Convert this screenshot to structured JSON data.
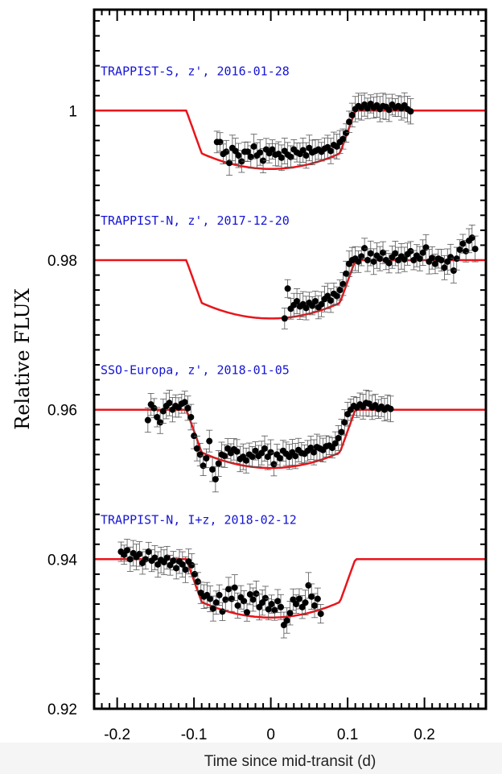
{
  "chart_data": {
    "type": "scatter",
    "xlabel": "Time since mid-transit (d)",
    "ylabel": "Relative  FLUX",
    "xlim": [
      -0.23,
      0.28
    ],
    "ylim": [
      0.92,
      1.0135
    ],
    "xticks": [
      -0.2,
      -0.1,
      0,
      0.1,
      0.2
    ],
    "xtick_labels": [
      "-0.2",
      "-0.1",
      "0",
      "0.1",
      "0.2"
    ],
    "yticks": [
      0.92,
      0.94,
      0.96,
      0.98,
      1.0
    ],
    "ytick_labels": [
      "0.92",
      "0.94",
      "0.96",
      "0.98",
      "1"
    ],
    "grid": false,
    "model_color": "#e8151b",
    "point_color": "#000000",
    "label_color": "#1515d6",
    "model": {
      "depth": 0.0065,
      "t1": -0.11,
      "t2": -0.09,
      "t3": 0.09,
      "t4": 0.11
    },
    "series": [
      {
        "label": "TRAPPIST-S, z', 2016-01-28",
        "baseline": 1.0,
        "points": [
          [
            -0.07,
            0.9958
          ],
          [
            -0.066,
            0.9958
          ],
          [
            -0.062,
            0.9942
          ],
          [
            -0.058,
            0.9945
          ],
          [
            -0.054,
            0.993
          ],
          [
            -0.05,
            0.995
          ],
          [
            -0.046,
            0.9946
          ],
          [
            -0.042,
            0.994
          ],
          [
            -0.038,
            0.9932
          ],
          [
            -0.034,
            0.9945
          ],
          [
            -0.03,
            0.9945
          ],
          [
            -0.026,
            0.9938
          ],
          [
            -0.022,
            0.9952
          ],
          [
            -0.018,
            0.994
          ],
          [
            -0.014,
            0.9944
          ],
          [
            -0.01,
            0.9933
          ],
          [
            -0.006,
            0.9948
          ],
          [
            -0.002,
            0.9943
          ],
          [
            0.002,
            0.9948
          ],
          [
            0.006,
            0.9941
          ],
          [
            0.01,
            0.9942
          ],
          [
            0.014,
            0.9937
          ],
          [
            0.018,
            0.9946
          ],
          [
            0.022,
            0.9941
          ],
          [
            0.026,
            0.9938
          ],
          [
            0.03,
            0.9948
          ],
          [
            0.034,
            0.9944
          ],
          [
            0.038,
            0.9942
          ],
          [
            0.042,
            0.9947
          ],
          [
            0.046,
            0.994
          ],
          [
            0.05,
            0.995
          ],
          [
            0.054,
            0.9944
          ],
          [
            0.058,
            0.9946
          ],
          [
            0.062,
            0.9948
          ],
          [
            0.066,
            0.9945
          ],
          [
            0.07,
            0.9949
          ],
          [
            0.074,
            0.9951
          ],
          [
            0.078,
            0.9946
          ],
          [
            0.082,
            0.9954
          ],
          [
            0.086,
            0.9952
          ],
          [
            0.09,
            0.9958
          ],
          [
            0.094,
            0.9962
          ],
          [
            0.098,
            0.997
          ],
          [
            0.102,
            0.9985
          ],
          [
            0.106,
            0.9994
          ],
          [
            0.11,
            1.0002
          ],
          [
            0.114,
            1.0006
          ],
          [
            0.118,
            1.0004
          ],
          [
            0.122,
            1.0008
          ],
          [
            0.126,
            1.0003
          ],
          [
            0.13,
            1.0009
          ],
          [
            0.134,
            1.0004
          ],
          [
            0.138,
            1.0007
          ],
          [
            0.142,
            1.0002
          ],
          [
            0.146,
            1.0006
          ],
          [
            0.15,
            1.0005
          ],
          [
            0.154,
            1.0001
          ],
          [
            0.158,
            1.0008
          ],
          [
            0.162,
            1.0004
          ],
          [
            0.166,
            1.0006
          ],
          [
            0.17,
            1.0003
          ],
          [
            0.174,
            1.0007
          ],
          [
            0.178,
            1.0002
          ],
          [
            0.182,
            0.9999
          ]
        ]
      },
      {
        "label": "TRAPPIST-N, z', 2017-12-20",
        "baseline": 0.98,
        "points": [
          [
            0.018,
            0.9722
          ],
          [
            0.022,
            0.9762
          ],
          [
            0.026,
            0.9735
          ],
          [
            0.03,
            0.974
          ],
          [
            0.034,
            0.9745
          ],
          [
            0.038,
            0.9738
          ],
          [
            0.042,
            0.9741
          ],
          [
            0.046,
            0.9736
          ],
          [
            0.05,
            0.9743
          ],
          [
            0.054,
            0.9739
          ],
          [
            0.058,
            0.9745
          ],
          [
            0.062,
            0.9737
          ],
          [
            0.066,
            0.9741
          ],
          [
            0.07,
            0.9748
          ],
          [
            0.074,
            0.9752
          ],
          [
            0.078,
            0.9746
          ],
          [
            0.082,
            0.9755
          ],
          [
            0.086,
            0.9752
          ],
          [
            0.09,
            0.976
          ],
          [
            0.094,
            0.9768
          ],
          [
            0.098,
            0.9782
          ],
          [
            0.102,
            0.9795
          ],
          [
            0.106,
            0.98
          ],
          [
            0.11,
            0.9802
          ],
          [
            0.114,
            0.9798
          ],
          [
            0.118,
            0.9805
          ],
          [
            0.122,
            0.9816
          ],
          [
            0.126,
            0.98
          ],
          [
            0.13,
            0.9809
          ],
          [
            0.134,
            0.9798
          ],
          [
            0.138,
            0.9806
          ],
          [
            0.142,
            0.9802
          ],
          [
            0.146,
            0.981
          ],
          [
            0.15,
            0.98
          ],
          [
            0.154,
            0.9796
          ],
          [
            0.158,
            0.9804
          ],
          [
            0.162,
            0.9809
          ],
          [
            0.166,
            0.98
          ],
          [
            0.17,
            0.9805
          ],
          [
            0.174,
            0.9801
          ],
          [
            0.178,
            0.9808
          ],
          [
            0.182,
            0.9812
          ],
          [
            0.186,
            0.98
          ],
          [
            0.19,
            0.9806
          ],
          [
            0.194,
            0.9802
          ],
          [
            0.198,
            0.981
          ],
          [
            0.202,
            0.9817
          ],
          [
            0.206,
            0.9798
          ],
          [
            0.21,
            0.9803
          ],
          [
            0.214,
            0.9795
          ],
          [
            0.218,
            0.9802
          ],
          [
            0.222,
            0.98
          ],
          [
            0.226,
            0.979
          ],
          [
            0.23,
            0.9798
          ],
          [
            0.234,
            0.9804
          ],
          [
            0.238,
            0.9786
          ],
          [
            0.242,
            0.9802
          ],
          [
            0.246,
            0.9814
          ],
          [
            0.25,
            0.9822
          ],
          [
            0.254,
            0.9812
          ],
          [
            0.258,
            0.9826
          ],
          [
            0.262,
            0.983
          ],
          [
            0.266,
            0.9815
          ]
        ]
      },
      {
        "label": "SSO-Europa, z', 2018-01-05",
        "baseline": 0.96,
        "points": [
          [
            -0.16,
            0.9586
          ],
          [
            -0.156,
            0.9607
          ],
          [
            -0.152,
            0.9602
          ],
          [
            -0.148,
            0.959
          ],
          [
            -0.144,
            0.9583
          ],
          [
            -0.14,
            0.9598
          ],
          [
            -0.136,
            0.9605
          ],
          [
            -0.132,
            0.9609
          ],
          [
            -0.128,
            0.96
          ],
          [
            -0.124,
            0.9605
          ],
          [
            -0.12,
            0.9603
          ],
          [
            -0.116,
            0.9608
          ],
          [
            -0.112,
            0.961
          ],
          [
            -0.108,
            0.9602
          ],
          [
            -0.104,
            0.959
          ],
          [
            -0.1,
            0.9565
          ],
          [
            -0.096,
            0.9548
          ],
          [
            -0.092,
            0.954
          ],
          [
            -0.088,
            0.9525
          ],
          [
            -0.084,
            0.9535
          ],
          [
            -0.08,
            0.9558
          ],
          [
            -0.076,
            0.952
          ],
          [
            -0.072,
            0.9507
          ],
          [
            -0.068,
            0.9528
          ],
          [
            -0.064,
            0.954
          ],
          [
            -0.06,
            0.9538
          ],
          [
            -0.056,
            0.9548
          ],
          [
            -0.052,
            0.9542
          ],
          [
            -0.048,
            0.9547
          ],
          [
            -0.044,
            0.9544
          ],
          [
            -0.04,
            0.9534
          ],
          [
            -0.036,
            0.9537
          ],
          [
            -0.032,
            0.9532
          ],
          [
            -0.028,
            0.954
          ],
          [
            -0.024,
            0.9537
          ],
          [
            -0.02,
            0.9545
          ],
          [
            -0.016,
            0.9538
          ],
          [
            -0.012,
            0.9542
          ],
          [
            -0.008,
            0.9548
          ],
          [
            -0.004,
            0.9537
          ],
          [
            0.0,
            0.9543
          ],
          [
            0.004,
            0.9527
          ],
          [
            0.008,
            0.954
          ],
          [
            0.012,
            0.9535
          ],
          [
            0.016,
            0.9545
          ],
          [
            0.02,
            0.9541
          ],
          [
            0.024,
            0.9537
          ],
          [
            0.028,
            0.9543
          ],
          [
            0.032,
            0.9538
          ],
          [
            0.036,
            0.9546
          ],
          [
            0.04,
            0.9542
          ],
          [
            0.044,
            0.9541
          ],
          [
            0.048,
            0.9545
          ],
          [
            0.052,
            0.9549
          ],
          [
            0.056,
            0.9543
          ],
          [
            0.06,
            0.955
          ],
          [
            0.064,
            0.9548
          ],
          [
            0.068,
            0.9546
          ],
          [
            0.072,
            0.9551
          ],
          [
            0.076,
            0.9552
          ],
          [
            0.08,
            0.9549
          ],
          [
            0.084,
            0.9555
          ],
          [
            0.088,
            0.9562
          ],
          [
            0.092,
            0.957
          ],
          [
            0.096,
            0.9583
          ],
          [
            0.1,
            0.9594
          ],
          [
            0.104,
            0.96
          ],
          [
            0.108,
            0.9605
          ],
          [
            0.112,
            0.9603
          ],
          [
            0.116,
            0.9607
          ],
          [
            0.12,
            0.9604
          ],
          [
            0.124,
            0.9609
          ],
          [
            0.128,
            0.9608
          ],
          [
            0.132,
            0.9603
          ],
          [
            0.136,
            0.9606
          ],
          [
            0.14,
            0.9601
          ],
          [
            0.144,
            0.9604
          ],
          [
            0.148,
            0.96
          ],
          [
            0.152,
            0.9603
          ],
          [
            0.156,
            0.9601
          ]
        ]
      },
      {
        "label": "TRAPPIST-N, I+z, 2018-02-12",
        "baseline": 0.94,
        "points": [
          [
            -0.195,
            0.941
          ],
          [
            -0.191,
            0.9406
          ],
          [
            -0.187,
            0.9412
          ],
          [
            -0.183,
            0.94
          ],
          [
            -0.179,
            0.9408
          ],
          [
            -0.175,
            0.9403
          ],
          [
            -0.171,
            0.9407
          ],
          [
            -0.167,
            0.9395
          ],
          [
            -0.163,
            0.94
          ],
          [
            -0.159,
            0.941
          ],
          [
            -0.155,
            0.9398
          ],
          [
            -0.151,
            0.9402
          ],
          [
            -0.147,
            0.9393
          ],
          [
            -0.143,
            0.9399
          ],
          [
            -0.139,
            0.9396
          ],
          [
            -0.135,
            0.9402
          ],
          [
            -0.131,
            0.9392
          ],
          [
            -0.127,
            0.9398
          ],
          [
            -0.123,
            0.9388
          ],
          [
            -0.119,
            0.9397
          ],
          [
            -0.115,
            0.9393
          ],
          [
            -0.111,
            0.9386
          ],
          [
            -0.107,
            0.9397
          ],
          [
            -0.103,
            0.9392
          ],
          [
            -0.099,
            0.938
          ],
          [
            -0.095,
            0.937
          ],
          [
            -0.091,
            0.9355
          ],
          [
            -0.087,
            0.935
          ],
          [
            -0.083,
            0.9352
          ],
          [
            -0.079,
            0.9347
          ],
          [
            -0.075,
            0.9334
          ],
          [
            -0.071,
            0.9342
          ],
          [
            -0.067,
            0.9352
          ],
          [
            -0.063,
            0.933
          ],
          [
            -0.059,
            0.9346
          ],
          [
            -0.055,
            0.936
          ],
          [
            -0.051,
            0.9347
          ],
          [
            -0.047,
            0.9362
          ],
          [
            -0.043,
            0.9338
          ],
          [
            -0.039,
            0.9349
          ],
          [
            -0.035,
            0.9344
          ],
          [
            -0.031,
            0.9329
          ],
          [
            -0.027,
            0.9353
          ],
          [
            -0.023,
            0.9346
          ],
          [
            -0.019,
            0.9354
          ],
          [
            -0.015,
            0.9336
          ],
          [
            -0.011,
            0.9342
          ],
          [
            -0.007,
            0.9348
          ],
          [
            -0.003,
            0.9333
          ],
          [
            0.001,
            0.934
          ],
          [
            0.005,
            0.9332
          ],
          [
            0.009,
            0.9344
          ],
          [
            0.013,
            0.9336
          ],
          [
            0.017,
            0.9312
          ],
          [
            0.021,
            0.9318
          ],
          [
            0.025,
            0.9328
          ],
          [
            0.029,
            0.9346
          ],
          [
            0.033,
            0.934
          ],
          [
            0.037,
            0.9347
          ],
          [
            0.041,
            0.9336
          ],
          [
            0.045,
            0.9342
          ],
          [
            0.049,
            0.9365
          ],
          [
            0.053,
            0.935
          ],
          [
            0.057,
            0.9338
          ],
          [
            0.061,
            0.9347
          ],
          [
            0.065,
            0.9327
          ]
        ]
      }
    ]
  }
}
